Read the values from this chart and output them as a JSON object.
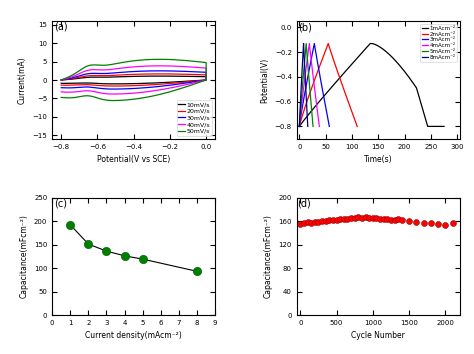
{
  "panel_labels": [
    "(a)",
    "(b)",
    "(c)",
    "(d)"
  ],
  "cv_colors": [
    "black",
    "red",
    "blue",
    "magenta",
    "green"
  ],
  "cv_labels": [
    "10mV/s",
    "20mV/s",
    "30mV/s",
    "40mV/s",
    "50mV/s"
  ],
  "cv_amplitudes": [
    1.8,
    2.8,
    4.2,
    6.5,
    9.5
  ],
  "gcd_colors": [
    "black",
    "red",
    "blue",
    "magenta",
    "green",
    "navy"
  ],
  "gcd_labels": [
    "1mAcm⁻²",
    "2mAcm⁻²",
    "3mAcm⁻²",
    "4mAcm⁻²",
    "5mAcm⁻²",
    "8mAcm⁻²"
  ],
  "gcd_t_max": [
    275,
    110,
    57,
    38,
    26,
    16
  ],
  "cap_x": [
    1,
    2,
    3,
    4,
    5,
    8
  ],
  "cap_y": [
    192,
    151,
    136,
    126,
    119,
    93
  ],
  "cycle_x": [
    0,
    50,
    100,
    150,
    200,
    250,
    300,
    350,
    400,
    450,
    500,
    550,
    600,
    650,
    700,
    750,
    800,
    850,
    900,
    950,
    1000,
    1050,
    1100,
    1150,
    1200,
    1250,
    1300,
    1350,
    1400,
    1500,
    1600,
    1700,
    1800,
    1900,
    2000,
    2100
  ],
  "cycle_y": [
    155,
    157,
    158,
    157,
    158,
    159,
    160,
    160,
    161,
    162,
    161,
    163,
    163,
    164,
    165,
    166,
    167,
    166,
    167,
    166,
    165,
    165,
    164,
    163,
    163,
    162,
    162,
    163,
    161,
    160,
    158,
    157,
    156,
    155,
    154,
    156
  ],
  "background_color": "white"
}
